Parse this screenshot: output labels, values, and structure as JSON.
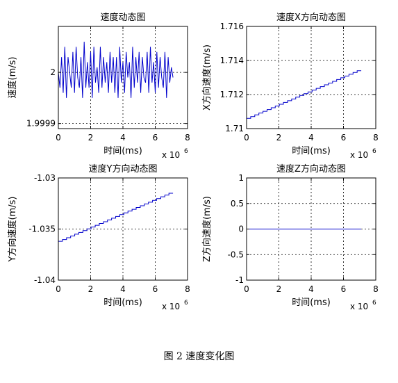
{
  "figure": {
    "caption": "图 2  速度变化图"
  },
  "chart_data": [
    {
      "type": "line",
      "title": "速度动态图",
      "xlabel": "时间(ms)",
      "ylabel": "速度(m/s)",
      "x_multiplier": "x 10",
      "x_multiplier_exp": "6",
      "xlim": [
        0,
        8
      ],
      "ylim": [
        1.99989,
        2.00009
      ],
      "xticks": [
        0,
        2,
        4,
        6,
        8
      ],
      "xtick_labels": [
        "0",
        "2",
        "4",
        "6",
        "8"
      ],
      "yticks": [
        1.9999,
        2.0
      ],
      "ytick_labels": [
        "1.9999",
        "2"
      ],
      "grid": true,
      "series": [
        {
          "color": "#0000cc",
          "x": [
            0.0,
            0.1,
            0.2,
            0.3,
            0.4,
            0.5,
            0.6,
            0.7,
            0.8,
            0.9,
            1.0,
            1.1,
            1.2,
            1.3,
            1.4,
            1.5,
            1.6,
            1.7,
            1.8,
            1.9,
            2.0,
            2.1,
            2.2,
            2.3,
            2.4,
            2.5,
            2.6,
            2.7,
            2.8,
            2.9,
            3.0,
            3.1,
            3.2,
            3.3,
            3.4,
            3.5,
            3.6,
            3.7,
            3.8,
            3.9,
            4.0,
            4.1,
            4.2,
            4.3,
            4.4,
            4.5,
            4.6,
            4.7,
            4.8,
            4.9,
            5.0,
            5.1,
            5.2,
            5.3,
            5.4,
            5.5,
            5.6,
            5.7,
            5.8,
            5.9,
            6.0,
            6.1,
            6.2,
            6.3,
            6.4,
            6.5,
            6.6,
            6.7,
            6.8,
            6.9,
            7.0,
            7.1
          ],
          "y": [
            2.0,
            1.99997,
            2.00003,
            1.99996,
            2.00005,
            1.99995,
            2.00003,
            2.0,
            1.99997,
            2.00004,
            1.99996,
            2.00005,
            1.99999,
            1.99997,
            2.00003,
            1.99995,
            2.00006,
            1.99997,
            2.00002,
            1.99997,
            2.00004,
            1.99995,
            2.00005,
            1.99998,
            2.00001,
            1.99996,
            2.00005,
            1.99997,
            2.00003,
            1.99998,
            2.00002,
            1.99996,
            2.00004,
            1.99998,
            2.00003,
            1.99996,
            2.00003,
            1.99995,
            2.00005,
            1.99998,
            2.00002,
            1.99996,
            2.00004,
            1.99999,
            2.00002,
            1.99995,
            2.00005,
            1.99997,
            2.00003,
            1.99998,
            2.00004,
            1.99996,
            2.00003,
            1.99999,
            1.99998,
            2.00004,
            1.99996,
            2.00005,
            1.99998,
            2.00002,
            1.99996,
            2.00004,
            1.99997,
            2.00003,
            1.99999,
            1.99997,
            2.00004,
            1.99995,
            2.00003,
            1.99998,
            2.00001,
            1.99999
          ]
        }
      ]
    },
    {
      "type": "line",
      "title": "速度X方向动态图",
      "xlabel": "时间(ms)",
      "ylabel": "X方向速度(m/s)",
      "x_multiplier": "x 10",
      "x_multiplier_exp": "6",
      "xlim": [
        0,
        8
      ],
      "ylim": [
        1.71,
        1.716
      ],
      "xticks": [
        0,
        2,
        4,
        6,
        8
      ],
      "xtick_labels": [
        "0",
        "2",
        "4",
        "6",
        "8"
      ],
      "yticks": [
        1.71,
        1.712,
        1.714,
        1.716
      ],
      "ytick_labels": [
        "1.71",
        "1.712",
        "1.714",
        "1.716"
      ],
      "grid": true,
      "series": [
        {
          "color": "#0000cc",
          "x": [
            0,
            7.1
          ],
          "y": [
            1.7106,
            1.7134
          ],
          "stepped": true
        }
      ]
    },
    {
      "type": "line",
      "title": "速度Y方向动态图",
      "xlabel": "时间(ms)",
      "ylabel": "Y方向速度(m/s)",
      "x_multiplier": "x 10",
      "x_multiplier_exp": "6",
      "xlim": [
        0,
        8
      ],
      "ylim": [
        -1.04,
        -1.03
      ],
      "xticks": [
        0,
        2,
        4,
        6,
        8
      ],
      "xtick_labels": [
        "0",
        "2",
        "4",
        "6",
        "8"
      ],
      "yticks": [
        -1.04,
        -1.035,
        -1.03
      ],
      "ytick_labels": [
        "-1.04",
        "-1.035",
        "-1.03"
      ],
      "grid": true,
      "series": [
        {
          "color": "#0000cc",
          "x": [
            0,
            7.1
          ],
          "y": [
            -1.0362,
            -1.0315
          ],
          "stepped": true
        }
      ]
    },
    {
      "type": "line",
      "title": "速度Z方向动态图",
      "xlabel": "时间(ms)",
      "ylabel": "Z方向速度(m/s)",
      "x_multiplier": "x 10",
      "x_multiplier_exp": "6",
      "xlim": [
        0,
        8
      ],
      "ylim": [
        -1,
        1
      ],
      "xticks": [
        0,
        2,
        4,
        6,
        8
      ],
      "xtick_labels": [
        "0",
        "2",
        "4",
        "6",
        "8"
      ],
      "yticks": [
        -1,
        -0.5,
        0,
        0.5,
        1
      ],
      "ytick_labels": [
        "-1",
        "-0.5",
        "0",
        "0.5",
        "1"
      ],
      "grid": true,
      "series": [
        {
          "color": "#0000cc",
          "x": [
            0,
            7.1
          ],
          "y": [
            0,
            0
          ]
        }
      ]
    }
  ]
}
